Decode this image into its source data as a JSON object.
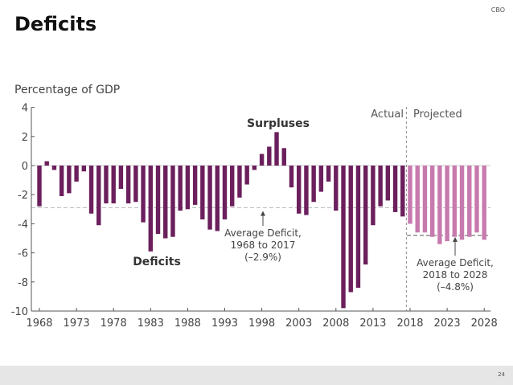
{
  "header": {
    "title": "Deficits",
    "brand": "CBO"
  },
  "footer": {
    "page_number": "24"
  },
  "colors": {
    "actual": "#6b1f5c",
    "projected": "#c77aae",
    "axis": "#555555",
    "grid": "#c8c8c8",
    "avg_line": "#555555"
  },
  "chart_data": {
    "type": "bar",
    "title": "",
    "ylabel": "Percentage of GDP",
    "xlabel": "",
    "ylim": [
      -10,
      4
    ],
    "yticks": [
      4,
      2,
      0,
      -2,
      -4,
      -6,
      -8,
      -10
    ],
    "xticks": [
      1968,
      1973,
      1978,
      1983,
      1988,
      1993,
      1998,
      2003,
      2008,
      2013,
      2018,
      2023,
      2028
    ],
    "grid": false,
    "series": [
      {
        "name": "Actual",
        "x": [
          1968,
          1969,
          1970,
          1971,
          1972,
          1973,
          1974,
          1975,
          1976,
          1977,
          1978,
          1979,
          1980,
          1981,
          1982,
          1983,
          1984,
          1985,
          1986,
          1987,
          1988,
          1989,
          1990,
          1991,
          1992,
          1993,
          1994,
          1995,
          1996,
          1997,
          1998,
          1999,
          2000,
          2001,
          2002,
          2003,
          2004,
          2005,
          2006,
          2007,
          2008,
          2009,
          2010,
          2011,
          2012,
          2013,
          2014,
          2015,
          2016,
          2017
        ],
        "values": [
          -2.8,
          0.3,
          -0.3,
          -2.1,
          -1.9,
          -1.1,
          -0.4,
          -3.3,
          -4.1,
          -2.6,
          -2.6,
          -1.6,
          -2.6,
          -2.5,
          -3.9,
          -5.9,
          -4.7,
          -5.0,
          -4.9,
          -3.1,
          -3.0,
          -2.7,
          -3.7,
          -4.4,
          -4.5,
          -3.7,
          -2.8,
          -2.2,
          -1.3,
          -0.3,
          0.8,
          1.3,
          2.3,
          1.2,
          -1.5,
          -3.3,
          -3.4,
          -2.5,
          -1.8,
          -1.1,
          -3.1,
          -9.8,
          -8.7,
          -8.4,
          -6.8,
          -4.1,
          -2.8,
          -2.4,
          -3.2,
          -3.5
        ]
      },
      {
        "name": "Projected",
        "x": [
          2018,
          2019,
          2020,
          2021,
          2022,
          2023,
          2024,
          2025,
          2026,
          2027,
          2028
        ],
        "values": [
          -4.0,
          -4.6,
          -4.6,
          -4.9,
          -5.4,
          -5.2,
          -4.9,
          -5.1,
          -4.9,
          -4.6,
          -5.1
        ]
      }
    ],
    "reference_lines": [
      {
        "label": "Average Deficit, 1968 to 2017",
        "value": -2.9,
        "from": 1968,
        "to": 2017
      },
      {
        "label": "Average Deficit, 2018 to 2028",
        "value": -4.8,
        "from": 2018,
        "to": 2028
      }
    ],
    "annotations": {
      "surpluses": "Surpluses",
      "deficits": "Deficits",
      "actual": "Actual",
      "projected": "Projected",
      "avg1": [
        "Average Deficit,",
        "1968 to 2017",
        "(–2.9%)"
      ],
      "avg2": [
        "Average Deficit,",
        "2018 to 2028",
        "(–4.8%)"
      ]
    }
  }
}
